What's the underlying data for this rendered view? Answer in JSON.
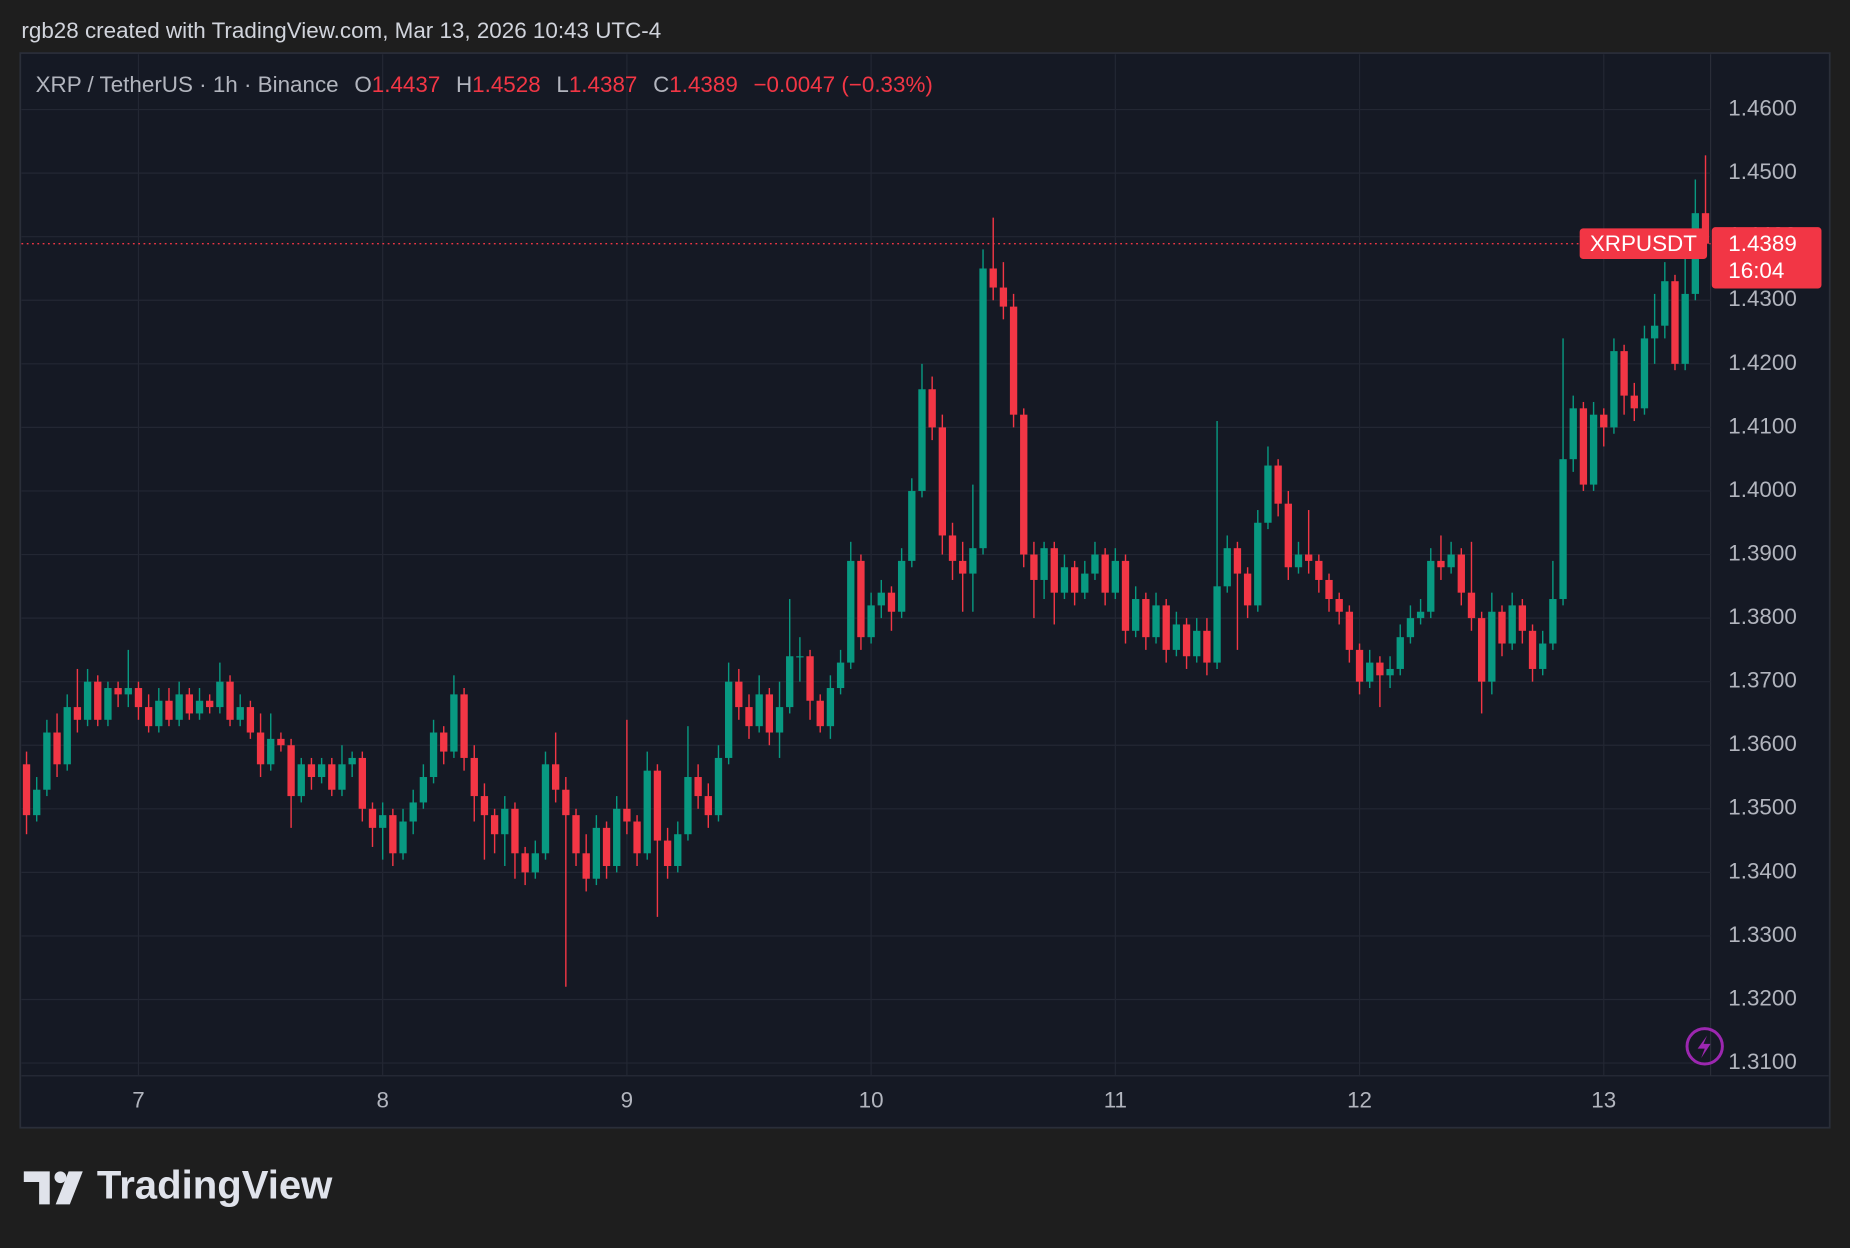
{
  "chart_data": {
    "type": "candlestick",
    "attribution": "rgb28 created with TradingView.com, Mar 13, 2026 10:43 UTC-4",
    "symbol": "XRP / TetherUS · 1h · Binance",
    "legend_keys": [
      "O",
      "H",
      "L",
      "C"
    ],
    "change": "−0.0047 (−0.33%)",
    "price_tag": "XRPUSDT",
    "countdown": "16:04",
    "brand": "TradingView",
    "up_color": "#089981",
    "down_color": "#f23645",
    "grid": true,
    "ylim": [
      1.308,
      1.4687
    ],
    "yticks": [
      {
        "value": 1.31,
        "label": "1.3100"
      },
      {
        "value": 1.32,
        "label": "1.3200"
      },
      {
        "value": 1.33,
        "label": "1.3300"
      },
      {
        "value": 1.34,
        "label": "1.3400"
      },
      {
        "value": 1.35,
        "label": "1.3500"
      },
      {
        "value": 1.36,
        "label": "1.3600"
      },
      {
        "value": 1.37,
        "label": "1.3700"
      },
      {
        "value": 1.38,
        "label": "1.3800"
      },
      {
        "value": 1.39,
        "label": "1.3900"
      },
      {
        "value": 1.4,
        "label": "1.4000"
      },
      {
        "value": 1.41,
        "label": "1.4100"
      },
      {
        "value": 1.42,
        "label": "1.4200"
      },
      {
        "value": 1.43,
        "label": "1.4300"
      },
      {
        "value": 1.44,
        "label": "1.4400"
      },
      {
        "value": 1.45,
        "label": "1.4500"
      },
      {
        "value": 1.46,
        "label": "1.4600"
      }
    ],
    "categories": [
      null,
      null,
      null,
      null,
      null,
      null,
      null,
      null,
      null,
      null,
      null,
      "7",
      null,
      null,
      null,
      null,
      null,
      null,
      null,
      null,
      null,
      null,
      null,
      null,
      null,
      null,
      null,
      null,
      null,
      null,
      null,
      null,
      null,
      null,
      null,
      "8",
      null,
      null,
      null,
      null,
      null,
      null,
      null,
      null,
      null,
      null,
      null,
      null,
      null,
      null,
      null,
      null,
      null,
      null,
      null,
      null,
      null,
      null,
      null,
      "9",
      null,
      null,
      null,
      null,
      null,
      null,
      null,
      null,
      null,
      null,
      null,
      null,
      null,
      null,
      null,
      null,
      null,
      null,
      null,
      null,
      null,
      null,
      null,
      "10",
      null,
      null,
      null,
      null,
      null,
      null,
      null,
      null,
      null,
      null,
      null,
      null,
      null,
      null,
      null,
      null,
      null,
      null,
      null,
      null,
      null,
      null,
      null,
      "11",
      null,
      null,
      null,
      null,
      null,
      null,
      null,
      null,
      null,
      null,
      null,
      null,
      null,
      null,
      null,
      null,
      null,
      null,
      null,
      null,
      null,
      null,
      null,
      "12",
      null,
      null,
      null,
      null,
      null,
      null,
      null,
      null,
      null,
      null,
      null,
      null,
      null,
      null,
      null,
      null,
      null,
      null,
      null,
      null,
      null,
      null,
      null,
      "13",
      null,
      null,
      null,
      null,
      null,
      null,
      null,
      null,
      null,
      null
    ],
    "candles": [
      [
        1.357,
        1.359,
        1.346,
        1.349
      ],
      [
        1.349,
        1.355,
        1.348,
        1.353
      ],
      [
        1.353,
        1.364,
        1.352,
        1.362
      ],
      [
        1.362,
        1.365,
        1.355,
        1.357
      ],
      [
        1.357,
        1.368,
        1.356,
        1.366
      ],
      [
        1.366,
        1.372,
        1.362,
        1.364
      ],
      [
        1.364,
        1.372,
        1.363,
        1.37
      ],
      [
        1.37,
        1.371,
        1.363,
        1.364
      ],
      [
        1.364,
        1.37,
        1.363,
        1.369
      ],
      [
        1.369,
        1.37,
        1.366,
        1.368
      ],
      [
        1.368,
        1.375,
        1.366,
        1.369
      ],
      [
        1.369,
        1.37,
        1.364,
        1.366
      ],
      [
        1.366,
        1.368,
        1.362,
        1.363
      ],
      [
        1.363,
        1.369,
        1.362,
        1.367
      ],
      [
        1.367,
        1.369,
        1.363,
        1.364
      ],
      [
        1.364,
        1.37,
        1.363,
        1.368
      ],
      [
        1.368,
        1.369,
        1.364,
        1.365
      ],
      [
        1.365,
        1.369,
        1.364,
        1.367
      ],
      [
        1.367,
        1.368,
        1.365,
        1.366
      ],
      [
        1.366,
        1.373,
        1.365,
        1.37
      ],
      [
        1.37,
        1.371,
        1.363,
        1.364
      ],
      [
        1.364,
        1.368,
        1.363,
        1.366
      ],
      [
        1.366,
        1.367,
        1.361,
        1.362
      ],
      [
        1.362,
        1.365,
        1.355,
        1.357
      ],
      [
        1.357,
        1.365,
        1.356,
        1.361
      ],
      [
        1.361,
        1.362,
        1.359,
        1.36
      ],
      [
        1.36,
        1.361,
        1.347,
        1.352
      ],
      [
        1.352,
        1.358,
        1.351,
        1.357
      ],
      [
        1.357,
        1.358,
        1.353,
        1.355
      ],
      [
        1.355,
        1.358,
        1.354,
        1.357
      ],
      [
        1.357,
        1.358,
        1.352,
        1.353
      ],
      [
        1.353,
        1.36,
        1.352,
        1.357
      ],
      [
        1.357,
        1.359,
        1.355,
        1.358
      ],
      [
        1.358,
        1.359,
        1.348,
        1.35
      ],
      [
        1.35,
        1.351,
        1.344,
        1.347
      ],
      [
        1.347,
        1.351,
        1.342,
        1.349
      ],
      [
        1.349,
        1.35,
        1.341,
        1.343
      ],
      [
        1.343,
        1.35,
        1.342,
        1.348
      ],
      [
        1.348,
        1.353,
        1.346,
        1.351
      ],
      [
        1.351,
        1.357,
        1.35,
        1.355
      ],
      [
        1.355,
        1.364,
        1.354,
        1.362
      ],
      [
        1.362,
        1.363,
        1.357,
        1.359
      ],
      [
        1.359,
        1.371,
        1.358,
        1.368
      ],
      [
        1.368,
        1.369,
        1.356,
        1.358
      ],
      [
        1.358,
        1.36,
        1.348,
        1.352
      ],
      [
        1.352,
        1.354,
        1.342,
        1.349
      ],
      [
        1.349,
        1.35,
        1.343,
        1.346
      ],
      [
        1.346,
        1.352,
        1.341,
        1.35
      ],
      [
        1.35,
        1.351,
        1.339,
        1.343
      ],
      [
        1.343,
        1.344,
        1.338,
        1.34
      ],
      [
        1.34,
        1.345,
        1.339,
        1.343
      ],
      [
        1.343,
        1.359,
        1.342,
        1.357
      ],
      [
        1.357,
        1.362,
        1.351,
        1.353
      ],
      [
        1.353,
        1.355,
        1.322,
        1.349
      ],
      [
        1.349,
        1.35,
        1.341,
        1.343
      ],
      [
        1.343,
        1.346,
        1.337,
        1.339
      ],
      [
        1.339,
        1.349,
        1.338,
        1.347
      ],
      [
        1.347,
        1.348,
        1.339,
        1.341
      ],
      [
        1.341,
        1.352,
        1.34,
        1.35
      ],
      [
        1.35,
        1.364,
        1.346,
        1.348
      ],
      [
        1.348,
        1.349,
        1.341,
        1.343
      ],
      [
        1.343,
        1.359,
        1.342,
        1.356
      ],
      [
        1.356,
        1.357,
        1.333,
        1.345
      ],
      [
        1.345,
        1.347,
        1.339,
        1.341
      ],
      [
        1.341,
        1.348,
        1.34,
        1.346
      ],
      [
        1.346,
        1.363,
        1.345,
        1.355
      ],
      [
        1.355,
        1.357,
        1.35,
        1.352
      ],
      [
        1.352,
        1.354,
        1.347,
        1.349
      ],
      [
        1.349,
        1.36,
        1.348,
        1.358
      ],
      [
        1.358,
        1.373,
        1.357,
        1.37
      ],
      [
        1.37,
        1.372,
        1.364,
        1.366
      ],
      [
        1.366,
        1.368,
        1.361,
        1.363
      ],
      [
        1.363,
        1.371,
        1.362,
        1.368
      ],
      [
        1.368,
        1.369,
        1.36,
        1.362
      ],
      [
        1.362,
        1.37,
        1.358,
        1.366
      ],
      [
        1.366,
        1.383,
        1.365,
        1.374
      ],
      [
        1.374,
        1.377,
        1.37,
        1.374
      ],
      [
        1.374,
        1.375,
        1.364,
        1.367
      ],
      [
        1.367,
        1.368,
        1.362,
        1.363
      ],
      [
        1.363,
        1.371,
        1.361,
        1.369
      ],
      [
        1.369,
        1.375,
        1.368,
        1.373
      ],
      [
        1.373,
        1.392,
        1.372,
        1.389
      ],
      [
        1.389,
        1.39,
        1.375,
        1.377
      ],
      [
        1.377,
        1.384,
        1.376,
        1.382
      ],
      [
        1.382,
        1.386,
        1.38,
        1.384
      ],
      [
        1.384,
        1.385,
        1.378,
        1.381
      ],
      [
        1.381,
        1.391,
        1.38,
        1.389
      ],
      [
        1.389,
        1.402,
        1.388,
        1.4
      ],
      [
        1.4,
        1.42,
        1.399,
        1.416
      ],
      [
        1.416,
        1.418,
        1.408,
        1.41
      ],
      [
        1.41,
        1.412,
        1.39,
        1.393
      ],
      [
        1.393,
        1.395,
        1.386,
        1.389
      ],
      [
        1.389,
        1.392,
        1.381,
        1.387
      ],
      [
        1.387,
        1.401,
        1.381,
        1.391
      ],
      [
        1.391,
        1.438,
        1.39,
        1.435
      ],
      [
        1.435,
        1.443,
        1.43,
        1.432
      ],
      [
        1.432,
        1.436,
        1.427,
        1.429
      ],
      [
        1.429,
        1.431,
        1.41,
        1.412
      ],
      [
        1.412,
        1.413,
        1.388,
        1.39
      ],
      [
        1.39,
        1.392,
        1.38,
        1.386
      ],
      [
        1.386,
        1.392,
        1.383,
        1.391
      ],
      [
        1.391,
        1.392,
        1.379,
        1.384
      ],
      [
        1.384,
        1.39,
        1.383,
        1.388
      ],
      [
        1.388,
        1.389,
        1.382,
        1.384
      ],
      [
        1.384,
        1.389,
        1.383,
        1.387
      ],
      [
        1.387,
        1.392,
        1.386,
        1.39
      ],
      [
        1.39,
        1.391,
        1.382,
        1.384
      ],
      [
        1.384,
        1.391,
        1.383,
        1.389
      ],
      [
        1.389,
        1.39,
        1.376,
        1.378
      ],
      [
        1.378,
        1.385,
        1.377,
        1.383
      ],
      [
        1.383,
        1.384,
        1.375,
        1.377
      ],
      [
        1.377,
        1.384,
        1.376,
        1.382
      ],
      [
        1.382,
        1.383,
        1.373,
        1.375
      ],
      [
        1.375,
        1.381,
        1.374,
        1.379
      ],
      [
        1.379,
        1.38,
        1.372,
        1.374
      ],
      [
        1.374,
        1.38,
        1.373,
        1.378
      ],
      [
        1.378,
        1.38,
        1.371,
        1.373
      ],
      [
        1.373,
        1.411,
        1.372,
        1.385
      ],
      [
        1.385,
        1.393,
        1.384,
        1.391
      ],
      [
        1.391,
        1.392,
        1.375,
        1.387
      ],
      [
        1.387,
        1.388,
        1.38,
        1.382
      ],
      [
        1.382,
        1.397,
        1.381,
        1.395
      ],
      [
        1.395,
        1.407,
        1.394,
        1.404
      ],
      [
        1.404,
        1.405,
        1.396,
        1.398
      ],
      [
        1.398,
        1.4,
        1.386,
        1.388
      ],
      [
        1.388,
        1.392,
        1.387,
        1.39
      ],
      [
        1.39,
        1.397,
        1.387,
        1.389
      ],
      [
        1.389,
        1.39,
        1.384,
        1.386
      ],
      [
        1.386,
        1.387,
        1.381,
        1.383
      ],
      [
        1.383,
        1.384,
        1.379,
        1.381
      ],
      [
        1.381,
        1.382,
        1.373,
        1.375
      ],
      [
        1.375,
        1.376,
        1.368,
        1.37
      ],
      [
        1.37,
        1.375,
        1.369,
        1.373
      ],
      [
        1.373,
        1.374,
        1.366,
        1.371
      ],
      [
        1.371,
        1.374,
        1.369,
        1.372
      ],
      [
        1.372,
        1.379,
        1.371,
        1.377
      ],
      [
        1.377,
        1.382,
        1.376,
        1.38
      ],
      [
        1.38,
        1.383,
        1.379,
        1.381
      ],
      [
        1.381,
        1.391,
        1.38,
        1.389
      ],
      [
        1.389,
        1.393,
        1.386,
        1.388
      ],
      [
        1.388,
        1.392,
        1.387,
        1.39
      ],
      [
        1.39,
        1.391,
        1.382,
        1.384
      ],
      [
        1.384,
        1.392,
        1.378,
        1.38
      ],
      [
        1.38,
        1.381,
        1.365,
        1.37
      ],
      [
        1.37,
        1.384,
        1.368,
        1.381
      ],
      [
        1.381,
        1.382,
        1.374,
        1.376
      ],
      [
        1.376,
        1.384,
        1.375,
        1.382
      ],
      [
        1.382,
        1.383,
        1.376,
        1.378
      ],
      [
        1.378,
        1.379,
        1.37,
        1.372
      ],
      [
        1.372,
        1.378,
        1.371,
        1.376
      ],
      [
        1.376,
        1.389,
        1.375,
        1.383
      ],
      [
        1.383,
        1.424,
        1.382,
        1.405
      ],
      [
        1.405,
        1.415,
        1.403,
        1.413
      ],
      [
        1.413,
        1.414,
        1.4,
        1.401
      ],
      [
        1.401,
        1.414,
        1.4,
        1.412
      ],
      [
        1.412,
        1.413,
        1.407,
        1.41
      ],
      [
        1.41,
        1.424,
        1.409,
        1.422
      ],
      [
        1.422,
        1.423,
        1.412,
        1.415
      ],
      [
        1.415,
        1.417,
        1.411,
        1.413
      ],
      [
        1.413,
        1.426,
        1.412,
        1.424
      ],
      [
        1.424,
        1.431,
        1.42,
        1.426
      ],
      [
        1.426,
        1.436,
        1.424,
        1.433
      ],
      [
        1.433,
        1.434,
        1.419,
        1.42
      ],
      [
        1.42,
        1.437,
        1.419,
        1.431
      ],
      [
        1.431,
        1.449,
        1.43,
        1.4437
      ],
      [
        1.4437,
        1.4528,
        1.4387,
        1.4389
      ]
    ]
  }
}
